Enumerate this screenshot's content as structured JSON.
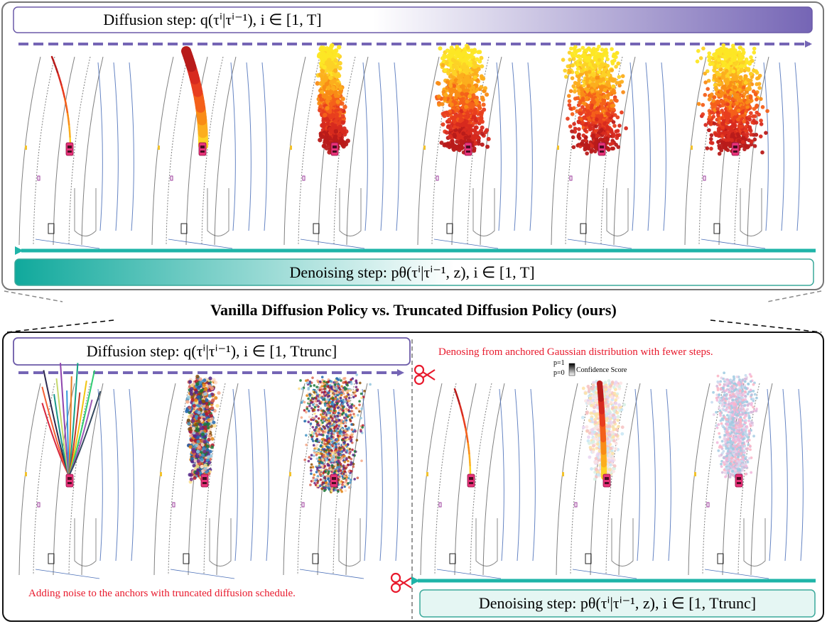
{
  "top_section": {
    "diffusion_label": "Diffusion step: q(τⁱ|τⁱ⁻¹), i ∈ [1, T]",
    "denoising_label": "Denoising step: pθ(τⁱ|τⁱ⁻¹, z), i ∈ [1, T]",
    "frames": 6
  },
  "title": "Vanilla Diffusion Policy vs. Truncated Diffusion Policy (ours)",
  "bottom_section": {
    "diffusion_label": "Diffusion step: q(τⁱ|τⁱ⁻¹), i ∈ [1, Ttrunc]",
    "denoising_label": "Denoising step: pθ(τⁱ|τⁱ⁻¹, z), i ∈ [1, Ttrunc]",
    "right_caption": "Denosing from anchored Gaussian distribution with fewer steps.",
    "left_caption": "Adding noise to the anchors with truncated diffusion schedule.",
    "legend_p1": "p=1",
    "legend_p0": "p=0",
    "legend_label": "Confidence Score"
  },
  "colors": {
    "diffusion_purple": "#7565b5",
    "denoise_teal": "#1fb4a8",
    "caption_red": "#e8192c",
    "car_pink": "#e8337a",
    "road_line": "#555555",
    "lane_blue": "#4a6fb8"
  }
}
